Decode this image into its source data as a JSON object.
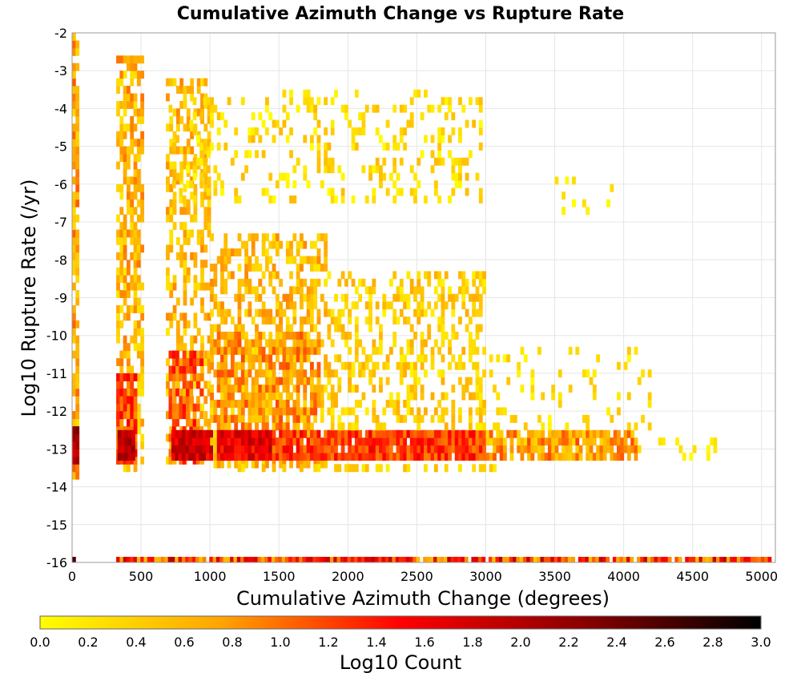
{
  "chart_data": {
    "type": "heatmap",
    "title": "Cumulative Azimuth Change vs Rupture Rate",
    "xlabel": "Cumulative Azimuth Change (degrees)",
    "ylabel": "Log10 Rupture Rate (/yr)",
    "xlim": [
      0,
      5100
    ],
    "ylim": [
      -16,
      -2
    ],
    "x_ticks": [
      "0",
      "500",
      "1000",
      "1500",
      "2000",
      "2500",
      "3000",
      "3500",
      "4000",
      "4500",
      "5000"
    ],
    "y_ticks": [
      "-2",
      "-3",
      "-4",
      "-5",
      "-6",
      "-7",
      "-8",
      "-9",
      "-10",
      "-11",
      "-12",
      "-13",
      "-14",
      "-15",
      "-16"
    ],
    "grid": true,
    "colorbar": {
      "label": "Log10 Count",
      "range": [
        0.0,
        3.0
      ],
      "ticks": [
        "0.0",
        "0.2",
        "0.4",
        "0.6",
        "0.8",
        "1.0",
        "1.2",
        "1.4",
        "1.6",
        "1.8",
        "2.0",
        "2.2",
        "2.4",
        "2.6",
        "2.8",
        "3.0"
      ],
      "colormap": [
        "#ffff00",
        "#ffa500",
        "#ff0000",
        "#8b0000",
        "#000000"
      ],
      "placement": "bottom"
    },
    "bin_width_x": 25,
    "bin_height_y": 0.2,
    "regions": [
      {
        "x": [
          0,
          40
        ],
        "y": [
          -13.8,
          -2
        ],
        "level": [
          0.3,
          1.1
        ],
        "density": 0.8
      },
      {
        "x": [
          0,
          30
        ],
        "y": [
          -13.4,
          -12.6
        ],
        "level": [
          1.6,
          2.4
        ],
        "density": 1.0
      },
      {
        "x": [
          320,
          500
        ],
        "y": [
          -13.6,
          -2.8
        ],
        "level": [
          0.2,
          1.0
        ],
        "density": 0.6
      },
      {
        "x": [
          320,
          470
        ],
        "y": [
          -13.4,
          -11.2
        ],
        "level": [
          0.8,
          1.6
        ],
        "density": 0.8
      },
      {
        "x": [
          330,
          440
        ],
        "y": [
          -13.3,
          -12.7
        ],
        "level": [
          1.6,
          2.2
        ],
        "density": 1.0
      },
      {
        "x": [
          680,
          1000
        ],
        "y": [
          -13.4,
          -3.3
        ],
        "level": [
          0.2,
          0.9
        ],
        "density": 0.45
      },
      {
        "x": [
          700,
          950
        ],
        "y": [
          -13.4,
          -10.5
        ],
        "level": [
          0.7,
          1.5
        ],
        "density": 0.75
      },
      {
        "x": [
          720,
          1000
        ],
        "y": [
          -13.3,
          -12.7
        ],
        "level": [
          1.4,
          2.1
        ],
        "density": 1.0
      },
      {
        "x": [
          1000,
          1850
        ],
        "y": [
          -13.5,
          -7.5
        ],
        "level": [
          0.2,
          0.9
        ],
        "density": 0.5
      },
      {
        "x": [
          1000,
          1800
        ],
        "y": [
          -12.5,
          -10.0
        ],
        "level": [
          0.4,
          1.2
        ],
        "density": 0.6
      },
      {
        "x": [
          1050,
          1450
        ],
        "y": [
          -13.3,
          -12.7
        ],
        "level": [
          1.3,
          2.0
        ],
        "density": 1.0
      },
      {
        "x": [
          1450,
          3000
        ],
        "y": [
          -13.3,
          -12.7
        ],
        "level": [
          0.9,
          1.6
        ],
        "density": 0.95
      },
      {
        "x": [
          1850,
          3000
        ],
        "y": [
          -12.5,
          -8.5
        ],
        "level": [
          0.1,
          0.7
        ],
        "density": 0.35
      },
      {
        "x": [
          3000,
          4100
        ],
        "y": [
          -13.3,
          -12.7
        ],
        "level": [
          0.3,
          1.2
        ],
        "density": 0.8
      },
      {
        "x": [
          3000,
          4200
        ],
        "y": [
          -12.5,
          -10.5
        ],
        "level": [
          0.0,
          0.5
        ],
        "density": 0.15
      },
      {
        "x": [
          1100,
          3100
        ],
        "y": [
          -13.6,
          -13.4
        ],
        "level": [
          0.1,
          0.6
        ],
        "density": 0.35
      },
      {
        "x": [
          700,
          3000
        ],
        "y": [
          -6.5,
          -3.5
        ],
        "level": [
          0.0,
          0.6
        ],
        "density": 0.2
      },
      {
        "x": [
          4100,
          4700
        ],
        "y": [
          -13.3,
          -12.9
        ],
        "level": [
          0.0,
          0.3
        ],
        "density": 0.15
      },
      {
        "x": [
          3500,
          4000
        ],
        "y": [
          -6.8,
          -5.8
        ],
        "level": [
          0.0,
          0.3
        ],
        "density": 0.12
      }
    ],
    "bottom_band": {
      "y": -16,
      "x": [
        320,
        5050
      ],
      "level": [
        0.4,
        2.0
      ],
      "density": 0.95
    },
    "corner_cell": {
      "x": 0,
      "y": -16,
      "level": 2.6
    }
  }
}
